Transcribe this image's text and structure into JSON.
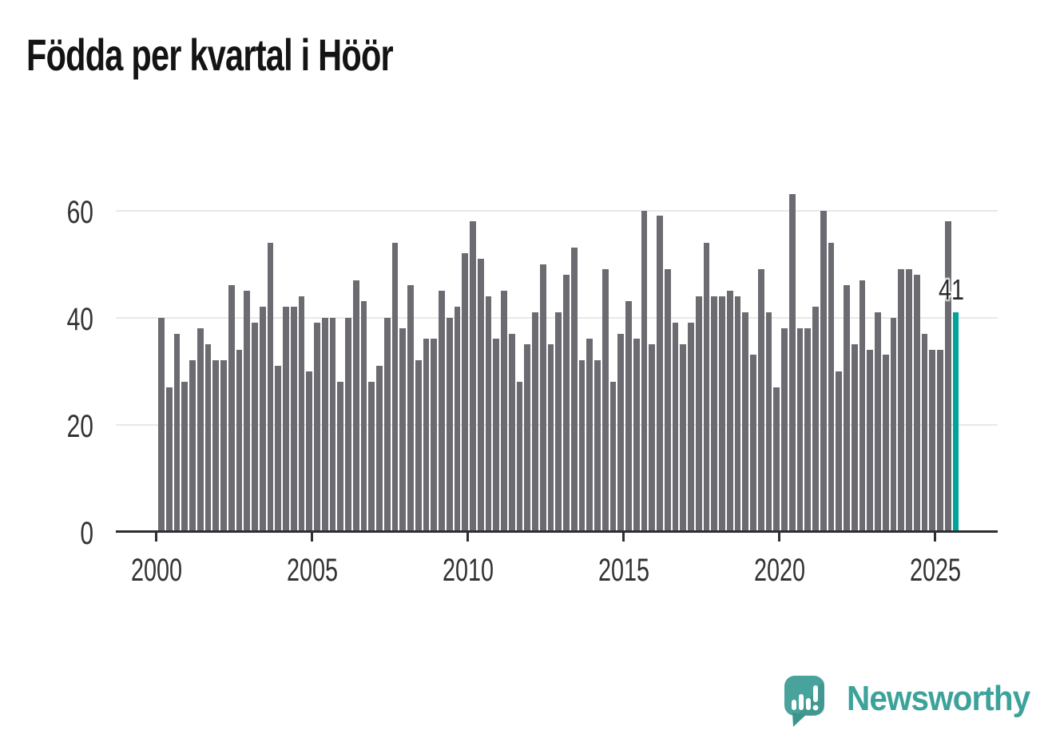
{
  "title": "Födda per kvartal i Höör",
  "branding": {
    "name": "Newsworthy",
    "color": "#3da29a"
  },
  "chart_data": {
    "type": "bar",
    "title": "Födda per kvartal i Höör",
    "frequency": "quarterly",
    "x_start": "2000 K1",
    "x_end": "2025 K3",
    "values": [
      40,
      27,
      37,
      28,
      32,
      38,
      35,
      32,
      32,
      46,
      34,
      45,
      39,
      42,
      54,
      31,
      42,
      42,
      44,
      30,
      39,
      40,
      40,
      28,
      40,
      47,
      43,
      28,
      31,
      40,
      54,
      38,
      46,
      32,
      36,
      36,
      45,
      40,
      42,
      52,
      58,
      51,
      44,
      36,
      45,
      37,
      28,
      35,
      41,
      50,
      35,
      41,
      48,
      53,
      32,
      36,
      32,
      49,
      28,
      37,
      43,
      36,
      60,
      35,
      59,
      49,
      39,
      35,
      39,
      44,
      54,
      44,
      44,
      45,
      44,
      41,
      33,
      49,
      41,
      27,
      38,
      63,
      38,
      38,
      42,
      60,
      54,
      30,
      46,
      35,
      47,
      34,
      41,
      33,
      40,
      49,
      49,
      48,
      37,
      34,
      34,
      58,
      41
    ],
    "years_start": 2000,
    "x_tick_labels": [
      "2000",
      "2005",
      "2010",
      "2015",
      "2020",
      "2025"
    ],
    "y_ticks": [
      0,
      20,
      40,
      60
    ],
    "ylim": [
      0,
      63
    ],
    "grid": "horizontal",
    "legend": "none",
    "bar_color": "#6c6b71",
    "highlight": {
      "index": 102,
      "value": 41,
      "label": "41",
      "color": "#00a39b"
    }
  }
}
